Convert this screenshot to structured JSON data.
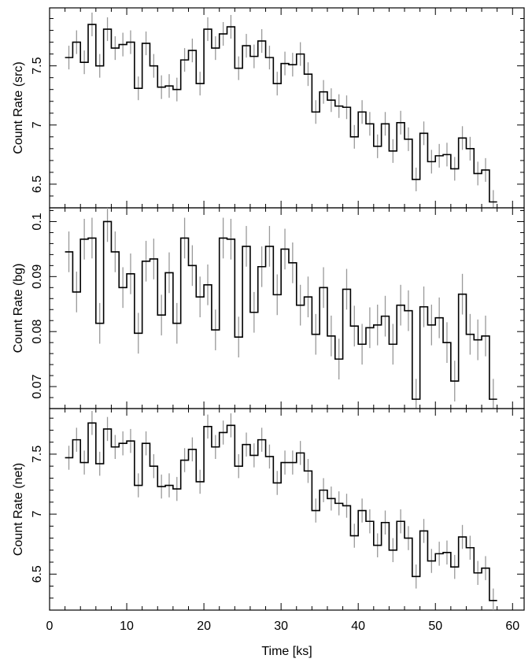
{
  "colors": {
    "line": "#000000",
    "error_bar": "#999999",
    "frame": "#000000",
    "background": "#ffffff"
  },
  "chart_data": [
    {
      "type": "line",
      "panel": "src",
      "ylabel": "Count Rate (src)",
      "xlabel": "",
      "xlim": [
        0,
        61.5
      ],
      "ylim": [
        6.3,
        7.99
      ],
      "yticks_major": [
        6.5,
        7,
        7.5
      ],
      "ytick_labels": [
        "6.5",
        "7",
        "7.5"
      ],
      "bin_width": 1,
      "x_start": 2,
      "values": [
        7.57,
        7.7,
        7.53,
        7.85,
        7.5,
        7.81,
        7.65,
        7.68,
        7.7,
        7.31,
        7.69,
        7.5,
        7.32,
        7.33,
        7.3,
        7.55,
        7.63,
        7.35,
        7.81,
        7.65,
        7.77,
        7.83,
        7.48,
        7.67,
        7.58,
        7.71,
        7.57,
        7.35,
        7.52,
        7.51,
        7.6,
        7.43,
        7.11,
        7.28,
        7.21,
        7.16,
        7.15,
        6.9,
        7.11,
        7.01,
        6.82,
        7.01,
        6.78,
        7.02,
        6.88,
        6.54,
        6.93,
        6.69,
        6.74,
        6.75,
        6.63,
        6.89,
        6.8,
        6.59,
        6.62,
        6.35
      ],
      "errors": [
        0.1,
        0.1,
        0.1,
        0.1,
        0.1,
        0.1,
        0.1,
        0.1,
        0.1,
        0.1,
        0.1,
        0.1,
        0.1,
        0.1,
        0.1,
        0.1,
        0.1,
        0.1,
        0.1,
        0.1,
        0.1,
        0.1,
        0.1,
        0.1,
        0.1,
        0.1,
        0.1,
        0.1,
        0.1,
        0.1,
        0.1,
        0.1,
        0.1,
        0.1,
        0.1,
        0.1,
        0.1,
        0.1,
        0.1,
        0.1,
        0.1,
        0.1,
        0.1,
        0.1,
        0.1,
        0.1,
        0.1,
        0.1,
        0.1,
        0.1,
        0.1,
        0.1,
        0.1,
        0.1,
        0.1,
        0.1
      ]
    },
    {
      "type": "line",
      "panel": "bg",
      "ylabel": "Count Rate (bg)",
      "xlabel": "",
      "xlim": [
        0,
        61.5
      ],
      "ylim": [
        0.066,
        0.1025
      ],
      "yticks_major": [
        0.07,
        0.08,
        0.09,
        0.1
      ],
      "ytick_labels": [
        "0.07",
        "0.08",
        "0.09",
        "0.1"
      ],
      "bin_width": 1,
      "x_start": 2,
      "values": [
        0.0945,
        0.0872,
        0.0968,
        0.097,
        0.0815,
        0.1,
        0.0945,
        0.088,
        0.0905,
        0.0797,
        0.0928,
        0.0932,
        0.083,
        0.0907,
        0.0815,
        0.097,
        0.092,
        0.0863,
        0.0885,
        0.0803,
        0.097,
        0.0968,
        0.079,
        0.0955,
        0.0835,
        0.0918,
        0.0955,
        0.0867,
        0.095,
        0.0925,
        0.0848,
        0.0863,
        0.0795,
        0.088,
        0.0792,
        0.075,
        0.0877,
        0.081,
        0.0777,
        0.0807,
        0.0812,
        0.0828,
        0.0777,
        0.0848,
        0.0838,
        0.0677,
        0.0845,
        0.0812,
        0.0825,
        0.078,
        0.071,
        0.0868,
        0.0795,
        0.0785,
        0.0792,
        0.0677
      ],
      "errors": [
        0.0037,
        0.0037,
        0.0037,
        0.0037,
        0.0037,
        0.0037,
        0.0037,
        0.0037,
        0.0037,
        0.0037,
        0.0037,
        0.0037,
        0.0037,
        0.0037,
        0.0037,
        0.0037,
        0.0037,
        0.0037,
        0.0037,
        0.0037,
        0.0037,
        0.0037,
        0.0037,
        0.0037,
        0.0037,
        0.0037,
        0.0037,
        0.0037,
        0.0037,
        0.0037,
        0.0037,
        0.0037,
        0.0037,
        0.0037,
        0.0037,
        0.0037,
        0.0037,
        0.0037,
        0.0037,
        0.0037,
        0.0037,
        0.0037,
        0.0037,
        0.0037,
        0.0037,
        0.0037,
        0.0037,
        0.0037,
        0.0037,
        0.0037,
        0.0037,
        0.0037,
        0.0037,
        0.0037,
        0.0037,
        0.0037
      ]
    },
    {
      "type": "line",
      "panel": "net",
      "ylabel": "Count Rate (net)",
      "xlabel": "Time [ks]",
      "xlim": [
        0,
        61.5
      ],
      "ylim": [
        6.2,
        7.88
      ],
      "yticks_major": [
        6.5,
        7,
        7.5
      ],
      "ytick_labels": [
        "6.5",
        "7",
        "7.5"
      ],
      "xticks_major": [
        0,
        10,
        20,
        30,
        40,
        50,
        60
      ],
      "xtick_labels": [
        "0",
        "10",
        "20",
        "30",
        "40",
        "50",
        "60"
      ],
      "bin_width": 1,
      "x_start": 2,
      "values": [
        7.47,
        7.62,
        7.43,
        7.76,
        7.42,
        7.71,
        7.56,
        7.59,
        7.61,
        7.24,
        7.59,
        7.4,
        7.23,
        7.24,
        7.21,
        7.45,
        7.54,
        7.27,
        7.73,
        7.56,
        7.68,
        7.74,
        7.4,
        7.58,
        7.49,
        7.62,
        7.48,
        7.26,
        7.43,
        7.43,
        7.51,
        7.36,
        7.03,
        7.2,
        7.13,
        7.09,
        7.07,
        6.82,
        7.03,
        6.94,
        6.74,
        6.93,
        6.7,
        6.94,
        6.8,
        6.48,
        6.86,
        6.61,
        6.67,
        6.68,
        6.56,
        6.81,
        6.72,
        6.51,
        6.55,
        6.28
      ],
      "errors": [
        0.1,
        0.1,
        0.1,
        0.1,
        0.1,
        0.1,
        0.1,
        0.1,
        0.1,
        0.1,
        0.1,
        0.1,
        0.1,
        0.1,
        0.1,
        0.1,
        0.1,
        0.1,
        0.1,
        0.1,
        0.1,
        0.1,
        0.1,
        0.1,
        0.1,
        0.1,
        0.1,
        0.1,
        0.1,
        0.1,
        0.1,
        0.1,
        0.1,
        0.1,
        0.1,
        0.1,
        0.1,
        0.1,
        0.1,
        0.1,
        0.1,
        0.1,
        0.1,
        0.1,
        0.1,
        0.1,
        0.1,
        0.1,
        0.1,
        0.1,
        0.1,
        0.1,
        0.1,
        0.1,
        0.1,
        0.1
      ]
    }
  ]
}
